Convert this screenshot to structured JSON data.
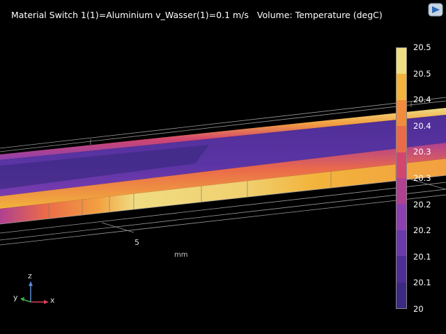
{
  "plot": {
    "title_left": "Material Switch 1(1)=Aluminium v_Wasser(1)=0.1 m/s",
    "title_right": "Volume: Temperature (degC)"
  },
  "axis": {
    "tick_label": "5",
    "unit": "mm"
  },
  "colorbar": {
    "labels": [
      "20.5",
      "20.5",
      "20.4",
      "20.4",
      "20.3",
      "20.3",
      "20.2",
      "20.2",
      "20.1",
      "20.1",
      "20"
    ],
    "bands_top_to_bottom": [
      "#f0dc82",
      "#f2b43c",
      "#f08c3c",
      "#ea6a4a",
      "#d2466e",
      "#b04090",
      "#8c40b0",
      "#6a3aaa",
      "#4e2e96",
      "#3c2a82"
    ]
  },
  "triad": {
    "z": "z",
    "y": "y",
    "x": "x"
  }
}
